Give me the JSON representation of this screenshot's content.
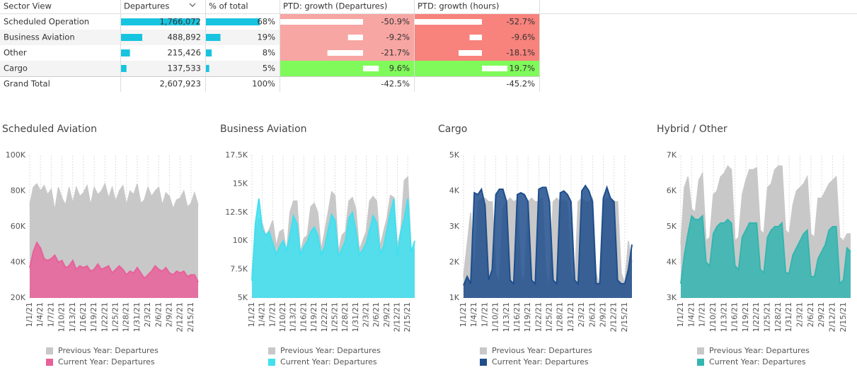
{
  "table": {
    "columns": [
      "Sector View",
      "Departures",
      "% of total",
      "PTD: growth (Departures)",
      "PTD: growth (hours)"
    ],
    "rows": [
      [
        "Scheduled Operation",
        {
          "value": 1766072,
          "label": "1,766,072"
        },
        {
          "value": 68,
          "label": "68%"
        },
        {
          "value": -50.9,
          "label": "-50.9%"
        },
        {
          "value": -52.7,
          "label": "-52.7%"
        }
      ],
      [
        "Business Aviation",
        {
          "value": 488892,
          "label": "488,892"
        },
        {
          "value": 19,
          "label": "19%"
        },
        {
          "value": -9.2,
          "label": "-9.2%"
        },
        {
          "value": -9.6,
          "label": "-9.6%"
        }
      ],
      [
        "Other",
        {
          "value": 215426,
          "label": "215,426"
        },
        {
          "value": 8,
          "label": "8%"
        },
        {
          "value": -21.7,
          "label": "-21.7%"
        },
        {
          "value": -18.1,
          "label": "-18.1%"
        }
      ],
      [
        "Cargo",
        {
          "value": 137533,
          "label": "137,533"
        },
        {
          "value": 5,
          "label": "5%"
        },
        {
          "value": 9.6,
          "label": "9.6%"
        },
        {
          "value": 19.7,
          "label": "19.7%"
        }
      ]
    ],
    "total": [
      "Grand Total",
      {
        "value": 2607923,
        "label": "2,607,923"
      },
      {
        "value": 100,
        "label": "100%"
      },
      {
        "value": -42.5,
        "label": "-42.5%"
      },
      {
        "value": -45.2,
        "label": "-45.2%"
      }
    ],
    "bar_color": "#17c4df",
    "negative_colors": [
      "#f7a6a3",
      "#f8827c"
    ],
    "positive_color": "#80fa5a"
  },
  "chart_data": [
    {
      "type": "area",
      "title": "Scheduled Aviation",
      "legend": "bottom",
      "grid": true,
      "categories": [
        "1/1/21",
        null,
        null,
        "1/4/21",
        null,
        null,
        "1/7/21",
        null,
        null,
        "1/10/21",
        null,
        null,
        "1/13/21",
        null,
        null,
        "1/16/21",
        null,
        null,
        "1/19/21",
        null,
        null,
        "1/22/21",
        null,
        null,
        "1/25/21",
        null,
        null,
        "1/28/21",
        null,
        null,
        "1/31/21",
        null,
        null,
        "2/3/21",
        null,
        null,
        "2/6/21",
        null,
        null,
        "2/9/21",
        null,
        null,
        "2/12/21",
        null,
        null,
        "2/15/21",
        null,
        null
      ],
      "ylim": [
        20000,
        100000
      ],
      "yticks": [
        {
          "value": 20000,
          "label": "20K"
        },
        {
          "value": 40000,
          "label": "40K"
        },
        {
          "value": 60000,
          "label": "60K"
        },
        {
          "value": 80000,
          "label": "80K"
        },
        {
          "value": 100000,
          "label": "100K"
        }
      ],
      "series": [
        {
          "name": "Previous Year: Departures",
          "color": "#c8c8c8",
          "values": [
            72000,
            82000,
            84000,
            80000,
            83000,
            78000,
            81000,
            69000,
            82000,
            76000,
            72000,
            82000,
            73000,
            82000,
            77000,
            79000,
            83000,
            72000,
            82000,
            78000,
            80000,
            84000,
            76000,
            82000,
            74000,
            80000,
            83000,
            72000,
            80000,
            78000,
            84000,
            73000,
            75000,
            82000,
            77000,
            80000,
            82000,
            72000,
            79000,
            77000,
            70000,
            75000,
            76000,
            80000,
            71000,
            73000,
            79000,
            72000
          ]
        },
        {
          "name": "Current Year: Departures",
          "color": "#e8609a",
          "values": [
            37000,
            46000,
            51000,
            48000,
            42000,
            41000,
            42000,
            44000,
            40000,
            41000,
            37000,
            38000,
            41000,
            36000,
            38000,
            37000,
            38000,
            35000,
            36000,
            39000,
            36000,
            37000,
            38000,
            34000,
            36000,
            38000,
            36000,
            33000,
            35000,
            34000,
            37000,
            34000,
            31000,
            33000,
            35000,
            38000,
            36000,
            35000,
            37000,
            34000,
            33000,
            35000,
            34000,
            35000,
            32000,
            33000,
            33000,
            29000
          ]
        }
      ]
    },
    {
      "type": "area",
      "title": "Business Aviation",
      "legend": "bottom",
      "grid": true,
      "categories": [
        "1/1/21",
        null,
        null,
        "1/4/21",
        null,
        null,
        "1/7/21",
        null,
        null,
        "1/10/21",
        null,
        null,
        "1/13/21",
        null,
        null,
        "1/16/21",
        null,
        null,
        "1/19/21",
        null,
        null,
        "1/22/21",
        null,
        null,
        "1/25/21",
        null,
        null,
        "1/28/21",
        null,
        null,
        "1/31/21",
        null,
        null,
        "2/3/21",
        null,
        null,
        "2/6/21",
        null,
        null,
        "2/9/21",
        null,
        null,
        "2/12/21",
        null,
        null,
        "2/15/21",
        null,
        null
      ],
      "ylim": [
        5000,
        17500
      ],
      "yticks": [
        {
          "value": 5000,
          "label": "5K"
        },
        {
          "value": 7500,
          "label": "7.5K"
        },
        {
          "value": 10000,
          "label": "10K"
        },
        {
          "value": 12500,
          "label": "12.5K"
        },
        {
          "value": 15000,
          "label": "15K"
        },
        {
          "value": 17500,
          "label": "17.5K"
        }
      ],
      "series": [
        {
          "name": "Previous Year: Departures",
          "color": "#c8c8c8",
          "values": [
            7000,
            11000,
            12000,
            11500,
            10500,
            11000,
            11800,
            9500,
            10800,
            11000,
            9000,
            12500,
            13500,
            13500,
            9000,
            10200,
            10500,
            13000,
            13300,
            12500,
            9200,
            10800,
            12500,
            14300,
            14000,
            9000,
            10500,
            10800,
            13500,
            13800,
            12800,
            9200,
            10000,
            10800,
            13500,
            13900,
            13500,
            9500,
            10800,
            12000,
            14000,
            13800,
            9500,
            11000,
            15300,
            15600,
            9000,
            9300
          ]
        },
        {
          "name": "Current Year: Departures",
          "color": "#3fe0f0",
          "values": [
            6500,
            11500,
            13700,
            11000,
            10500,
            10800,
            9800,
            8800,
            9500,
            10000,
            9200,
            10500,
            12200,
            11500,
            8800,
            9500,
            10000,
            10800,
            11200,
            10500,
            8800,
            9500,
            11000,
            12300,
            11800,
            8600,
            9300,
            10000,
            12000,
            12500,
            11000,
            8800,
            9200,
            9800,
            11000,
            12200,
            11600,
            8900,
            9500,
            11000,
            12500,
            13700,
            8700,
            10800,
            12000,
            13700,
            9000,
            10000
          ]
        }
      ]
    },
    {
      "type": "area",
      "title": "Cargo",
      "legend": "bottom",
      "grid": true,
      "categories": [
        "1/1/21",
        null,
        null,
        "1/4/21",
        null,
        null,
        "1/7/21",
        null,
        null,
        "1/10/21",
        null,
        null,
        "1/13/21",
        null,
        null,
        "1/16/21",
        null,
        null,
        "1/19/21",
        null,
        null,
        "1/22/21",
        null,
        null,
        "1/25/21",
        null,
        null,
        "1/28/21",
        null,
        null,
        "1/31/21",
        null,
        null,
        "2/3/21",
        null,
        null,
        "2/6/21",
        null,
        null,
        "2/9/21",
        null,
        null,
        "2/12/21",
        null,
        null,
        "2/15/21",
        null,
        null
      ],
      "ylim": [
        1000,
        5000
      ],
      "yticks": [
        {
          "value": 1000,
          "label": "1K"
        },
        {
          "value": 2000,
          "label": "2K"
        },
        {
          "value": 3000,
          "label": "3K"
        },
        {
          "value": 4000,
          "label": "4K"
        },
        {
          "value": 5000,
          "label": "5K"
        }
      ],
      "series": [
        {
          "name": "Previous Year: Departures",
          "color": "#c8c8c8",
          "values": [
            1600,
            2500,
            3400,
            1500,
            3700,
            3800,
            3800,
            3700,
            3700,
            1700,
            1400,
            3500,
            3700,
            3800,
            3700,
            3750,
            1700,
            1400,
            3700,
            3800,
            3700,
            3700,
            3800,
            1700,
            1300,
            3700,
            3800,
            3700,
            3750,
            3700,
            1700,
            1400,
            3700,
            3800,
            3700,
            3700,
            3800,
            1700,
            1300,
            3700,
            3800,
            3800,
            3700,
            3700,
            1700,
            1400,
            2600,
            2000
          ]
        },
        {
          "name": "Current Year: Departures",
          "color": "#1f4e8c",
          "values": [
            1350,
            1600,
            1400,
            3950,
            3900,
            4050,
            3600,
            1500,
            1800,
            3900,
            4050,
            4050,
            3700,
            1500,
            1400,
            3900,
            3950,
            3900,
            3700,
            1500,
            1400,
            4050,
            4100,
            4100,
            3700,
            1500,
            1400,
            3950,
            4000,
            3900,
            3700,
            1500,
            1400,
            4000,
            4150,
            4000,
            3700,
            1400,
            1400,
            3800,
            4100,
            3800,
            3700,
            1500,
            1400,
            1400,
            1800,
            2500
          ]
        }
      ]
    },
    {
      "type": "area",
      "title": "Hybrid / Other",
      "legend": "bottom",
      "grid": true,
      "categories": [
        "1/1/21",
        null,
        null,
        "1/4/21",
        null,
        null,
        "1/7/21",
        null,
        null,
        "1/10/21",
        null,
        null,
        "1/13/21",
        null,
        null,
        "1/16/21",
        null,
        null,
        "1/19/21",
        null,
        null,
        "1/22/21",
        null,
        null,
        "1/25/21",
        null,
        null,
        "1/28/21",
        null,
        null,
        "1/31/21",
        null,
        null,
        "2/3/21",
        null,
        null,
        "2/6/21",
        null,
        null,
        "2/9/21",
        null,
        null,
        "2/12/21",
        null,
        null,
        "2/15/21",
        null,
        null
      ],
      "ylim": [
        3000,
        7000
      ],
      "yticks": [
        {
          "value": 3000,
          "label": "3K"
        },
        {
          "value": 4000,
          "label": "4K"
        },
        {
          "value": 5000,
          "label": "5K"
        },
        {
          "value": 6000,
          "label": "6K"
        },
        {
          "value": 7000,
          "label": "7K"
        }
      ],
      "series": [
        {
          "name": "Previous Year: Departures",
          "color": "#c8c8c8",
          "values": [
            4500,
            6100,
            6400,
            5500,
            5400,
            6300,
            6500,
            4600,
            4700,
            5900,
            6000,
            6400,
            6500,
            6700,
            6600,
            4600,
            4700,
            5900,
            6300,
            6600,
            6600,
            6650,
            4900,
            4800,
            6100,
            6200,
            6600,
            6700,
            6700,
            4900,
            4800,
            5600,
            6000,
            6100,
            6200,
            6400,
            4800,
            4700,
            5800,
            5800,
            6000,
            6200,
            6300,
            6400,
            4700,
            4600,
            4800,
            4800
          ]
        },
        {
          "name": "Current Year: Departures",
          "color": "#33b5b0",
          "values": [
            3400,
            4200,
            4800,
            5300,
            5200,
            5200,
            5300,
            4000,
            3900,
            4800,
            5000,
            5100,
            5100,
            5200,
            5100,
            3900,
            3800,
            4700,
            4900,
            5100,
            5100,
            5100,
            3800,
            3700,
            4700,
            4900,
            5000,
            5000,
            5100,
            3700,
            3700,
            4200,
            4400,
            4600,
            4800,
            4900,
            3600,
            3600,
            4100,
            4300,
            4500,
            4900,
            5000,
            5000,
            3400,
            3500,
            4400,
            4300
          ]
        }
      ]
    }
  ]
}
